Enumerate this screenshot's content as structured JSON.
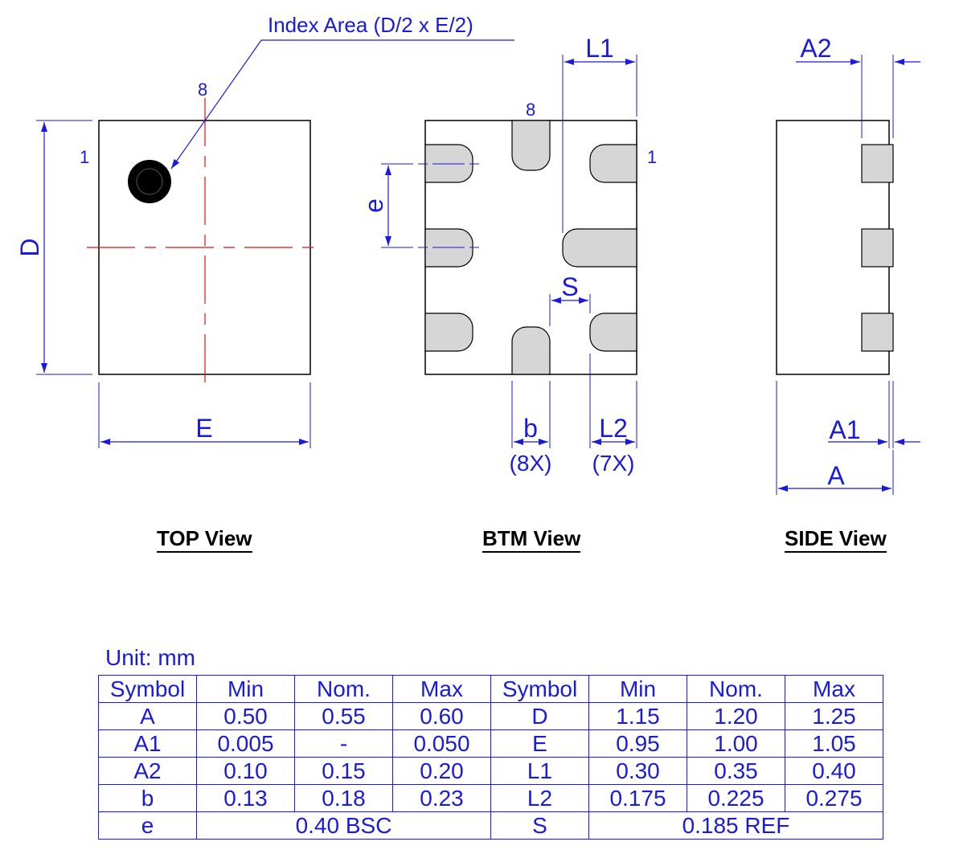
{
  "colors": {
    "line": "#1a1adc",
    "centerline": "#dd1111",
    "pad": "#d6d6d6",
    "outline": "#000000",
    "dot": "#000000"
  },
  "top_view": {
    "callout": "Index Area (D/2 x E/2)",
    "pin8": "8",
    "pin1": "1",
    "dim_d": "D",
    "dim_e": "E",
    "title": "TOP View"
  },
  "btm_view": {
    "pin8": "8",
    "pin1": "1",
    "dim_l1": "L1",
    "dim_e_pitch": "e",
    "dim_s": "S",
    "dim_b": "b",
    "dim_b_count": "(8X)",
    "dim_l2": "L2",
    "dim_l2_count": "(7X)",
    "title": "BTM View"
  },
  "side_view": {
    "dim_a2": "A2",
    "dim_a1": "A1",
    "dim_a": "A",
    "title": "SIDE View"
  },
  "table": {
    "unit": "Unit: mm",
    "headers": [
      "Symbol",
      "Min",
      "Nom.",
      "Max",
      "Symbol",
      "Min",
      "Nom.",
      "Max"
    ],
    "rows": [
      [
        "A",
        "0.50",
        "0.55",
        "0.60",
        "D",
        "1.15",
        "1.20",
        "1.25"
      ],
      [
        "A1",
        "0.005",
        "-",
        "0.050",
        "E",
        "0.95",
        "1.00",
        "1.05"
      ],
      [
        "A2",
        "0.10",
        "0.15",
        "0.20",
        "L1",
        "0.30",
        "0.35",
        "0.40"
      ],
      [
        "b",
        "0.13",
        "0.18",
        "0.23",
        "L2",
        "0.175",
        "0.225",
        "0.275"
      ]
    ],
    "last_row": {
      "sym1": "e",
      "val1": "0.40 BSC",
      "sym2": "S",
      "val2": "0.185 REF"
    }
  }
}
